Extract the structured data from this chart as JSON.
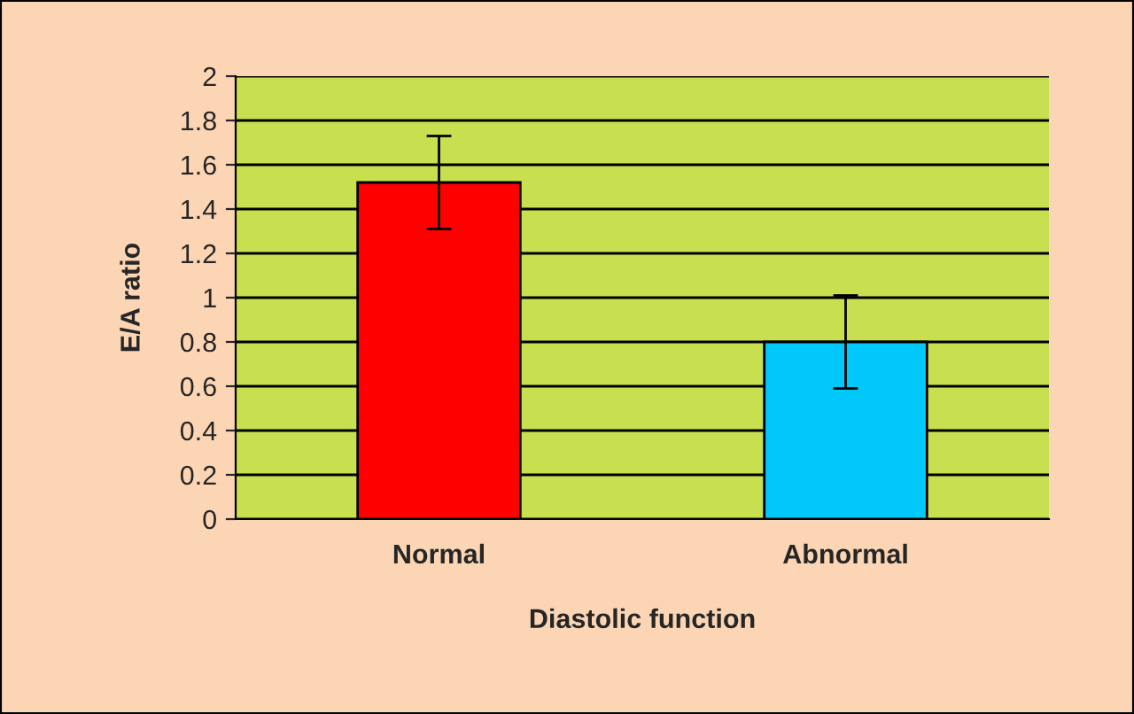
{
  "chart_data": {
    "type": "bar",
    "xlabel": "Diastolic function",
    "ylabel": "E/A ratio",
    "categories": [
      "Normal",
      "Abnormal"
    ],
    "values": [
      1.52,
      0.8
    ],
    "errors": [
      0.21,
      0.21
    ],
    "colors": [
      "#ff0000",
      "#00c8f8"
    ],
    "ylim": [
      0,
      2
    ],
    "yticks": [
      0,
      0.2,
      0.4,
      0.6,
      0.8,
      1,
      1.2,
      1.4,
      1.6,
      1.8,
      2
    ],
    "grid": "y",
    "legend": false
  }
}
